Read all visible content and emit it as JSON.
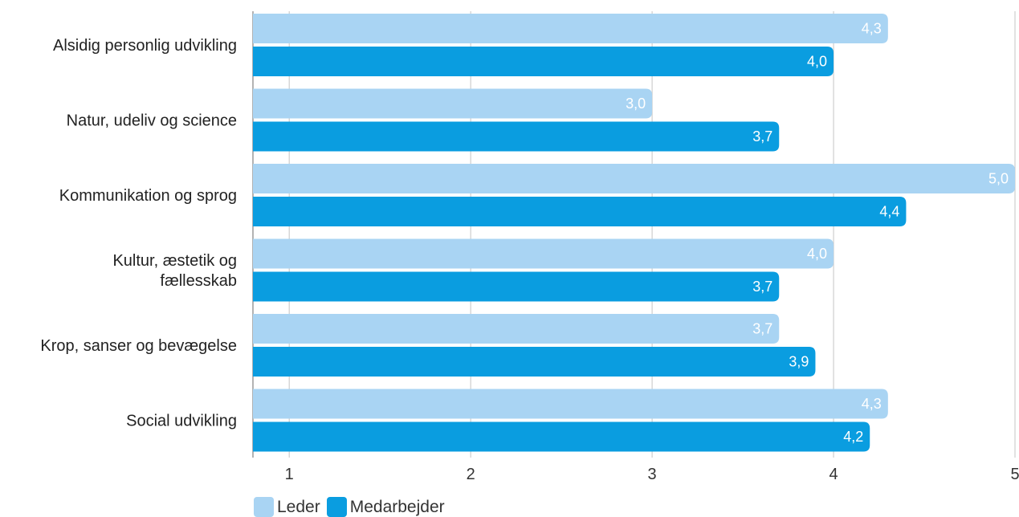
{
  "chart_data": {
    "type": "bar",
    "orientation": "horizontal",
    "categories": [
      [
        "Alsidig personlig udvikling"
      ],
      [
        "Natur, udeliv og science"
      ],
      [
        "Kommunikation og sprog"
      ],
      [
        "Kultur, æstetik og",
        "fællesskab"
      ],
      [
        "Krop, sanser og bevægelse"
      ],
      [
        "Social udvikling"
      ]
    ],
    "series": [
      {
        "name": "Leder",
        "color": "#a9d4f3",
        "values": [
          4.3,
          3.0,
          5.0,
          4.0,
          3.7,
          4.3
        ],
        "labels": [
          "4,3",
          "3,0",
          "5,0",
          "4,0",
          "3,7",
          "4,3"
        ]
      },
      {
        "name": "Medarbejder",
        "color": "#0a9de0",
        "values": [
          4.0,
          3.7,
          4.4,
          3.7,
          3.9,
          4.2
        ],
        "labels": [
          "4,0",
          "3,7",
          "4,4",
          "3,7",
          "3,9",
          "4,2"
        ]
      }
    ],
    "xlim": [
      0.8,
      5
    ],
    "xticks": [
      1,
      2,
      3,
      4,
      5
    ],
    "grid": true,
    "legend_position": "bottom-left"
  }
}
